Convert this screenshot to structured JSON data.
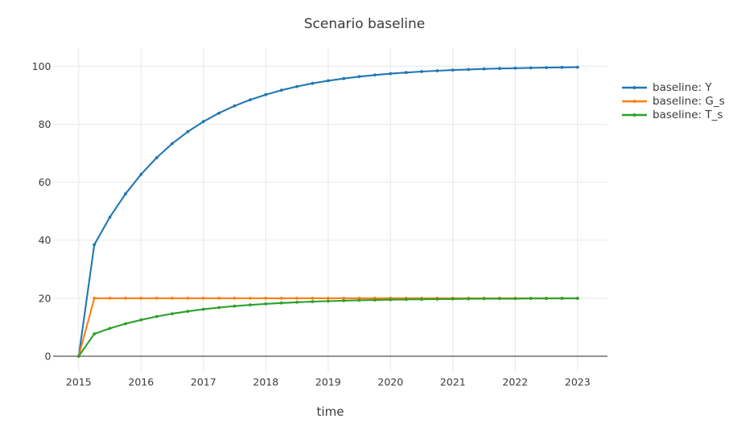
{
  "figure": {
    "background": "#ffffff"
  },
  "chart_data": {
    "type": "line",
    "title": "Scenario baseline",
    "xlabel": "time",
    "ylabel": "",
    "grid": true,
    "markers": true,
    "legend_position": "right-outside",
    "colors": {
      "grid": "#e7e7e7",
      "zeroline": "#555555",
      "text": "#3a3a3a",
      "title": "#3a3a3a"
    },
    "xlim": [
      2014.59,
      2023.48
    ],
    "ylim": [
      -5.55,
      106.19
    ],
    "xticks": [
      2015,
      2016,
      2017,
      2018,
      2019,
      2020,
      2021,
      2022,
      2023
    ],
    "yticks": [
      0,
      20,
      40,
      60,
      80,
      100
    ],
    "x": [
      2015,
      2015.25,
      2015.5,
      2015.75,
      2016,
      2016.25,
      2016.5,
      2016.75,
      2017,
      2017.25,
      2017.5,
      2017.75,
      2018,
      2018.25,
      2018.5,
      2018.75,
      2019,
      2019.25,
      2019.5,
      2019.75,
      2020,
      2020.25,
      2020.5,
      2020.75,
      2021,
      2021.25,
      2021.5,
      2021.75,
      2022,
      2022.25,
      2022.5,
      2022.75,
      2023
    ],
    "series": [
      {
        "name": "baseline: Y",
        "color": "#1f77b4",
        "values": [
          0,
          38.46,
          47.93,
          55.94,
          62.72,
          68.45,
          73.31,
          77.41,
          80.89,
          83.83,
          86.32,
          88.42,
          90.2,
          91.71,
          92.99,
          94.06,
          94.98,
          95.75,
          96.41,
          96.96,
          97.43,
          97.82,
          98.16,
          98.44,
          98.68,
          98.88,
          99.06,
          99.2,
          99.32,
          99.43,
          99.52,
          99.59,
          99.65
        ]
      },
      {
        "name": "baseline: G_s",
        "color": "#ff7f0e",
        "values": [
          0,
          20,
          20,
          20,
          20,
          20,
          20,
          20,
          20,
          20,
          20,
          20,
          20,
          20,
          20,
          20,
          20,
          20,
          20,
          20,
          20,
          20,
          20,
          20,
          20,
          20,
          20,
          20,
          20,
          20,
          20,
          20,
          20
        ]
      },
      {
        "name": "baseline: T_s",
        "color": "#2ca02c",
        "values": [
          0,
          7.69,
          9.59,
          11.19,
          12.54,
          13.69,
          14.66,
          15.48,
          16.18,
          16.77,
          17.26,
          17.68,
          18.04,
          18.34,
          18.6,
          18.81,
          19,
          19.15,
          19.28,
          19.39,
          19.49,
          19.56,
          19.63,
          19.69,
          19.74,
          19.78,
          19.81,
          19.84,
          19.86,
          19.89,
          19.9,
          19.92,
          19.93
        ]
      }
    ]
  }
}
